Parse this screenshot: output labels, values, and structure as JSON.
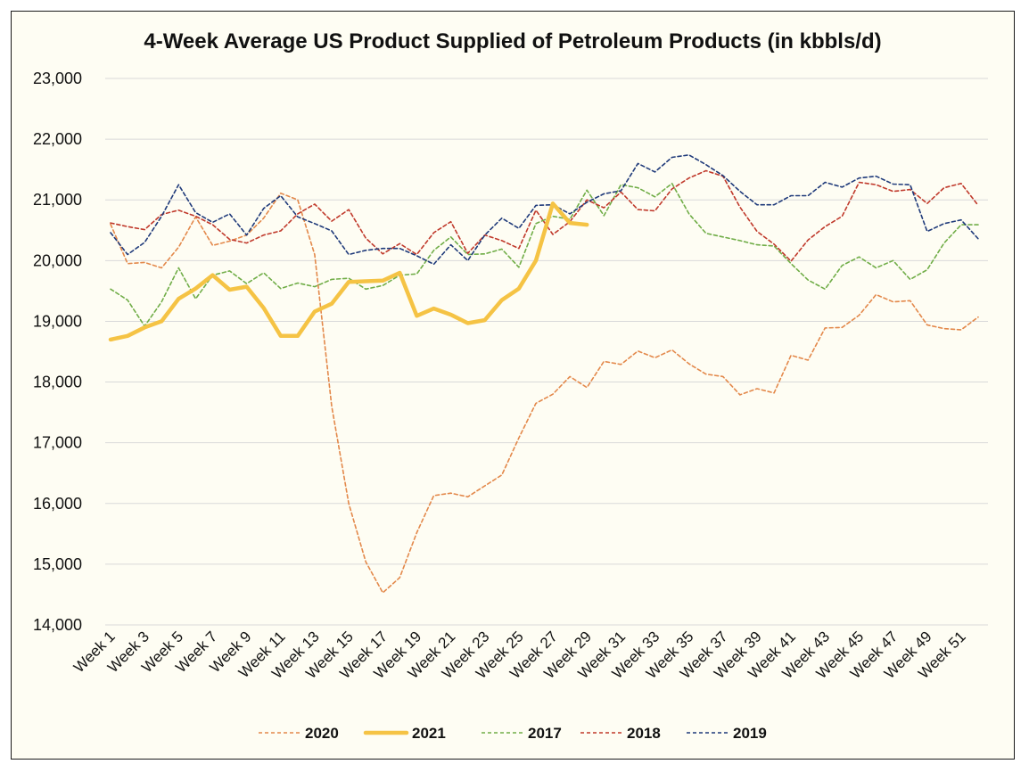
{
  "chart_data": {
    "type": "line",
    "title": "4-Week Average US Product Supplied of Petroleum Products (in kbbls/d)",
    "xlabel": "",
    "ylabel": "",
    "ylim": [
      14000,
      23000
    ],
    "yticks": [
      14000,
      15000,
      16000,
      17000,
      18000,
      19000,
      20000,
      21000,
      22000,
      23000
    ],
    "ytick_labels": [
      "14,000",
      "15,000",
      "16,000",
      "17,000",
      "18,000",
      "19,000",
      "20,000",
      "21,000",
      "22,000",
      "23,000"
    ],
    "x_tick_labels": [
      "Week 1",
      "Week 3",
      "Week 5",
      "Week 7",
      "Week 9",
      "Week 11",
      "Week 13",
      "Week 15",
      "Week 17",
      "Week 19",
      "Week 21",
      "Week 23",
      "Week 25",
      "Week 27",
      "Week 29",
      "Week 31",
      "Week 33",
      "Week 35",
      "Week 37",
      "Week 39",
      "Week 41",
      "Week 43",
      "Week 45",
      "Week 47",
      "Week 49",
      "Week 51"
    ],
    "grid": true,
    "legend_position": "bottom",
    "series": [
      {
        "name": "2020",
        "color": "#e3884a",
        "style": "dashed",
        "values": [
          20600,
          19950,
          19970,
          19880,
          20220,
          20720,
          20250,
          20320,
          20420,
          20700,
          21110,
          21000,
          20100,
          17600,
          16000,
          15040,
          14530,
          14780,
          15520,
          16130,
          16170,
          16110,
          16290,
          16470,
          17080,
          17650,
          17800,
          18090,
          17910,
          18340,
          18290,
          18510,
          18400,
          18530,
          18300,
          18130,
          18090,
          17790,
          17890,
          17820,
          18440,
          18360,
          18890,
          18900,
          19100,
          19440,
          19320,
          19340,
          18940,
          18880,
          18860,
          19070
        ]
      },
      {
        "name": "2021",
        "color": "#f5c344",
        "style": "solid",
        "values": [
          18700,
          18760,
          18900,
          19000,
          19370,
          19540,
          19760,
          19520,
          19570,
          19220,
          18760,
          18760,
          19160,
          19290,
          19650,
          19660,
          19670,
          19800,
          19090,
          19210,
          19110,
          18970,
          19020,
          19350,
          19540,
          20000,
          20940,
          20620,
          20590
        ]
      },
      {
        "name": "2017",
        "color": "#70ad47",
        "style": "dashed",
        "values": [
          19530,
          19350,
          18920,
          19320,
          19880,
          19370,
          19760,
          19830,
          19620,
          19800,
          19540,
          19630,
          19570,
          19690,
          19710,
          19530,
          19590,
          19760,
          19780,
          20170,
          20390,
          20100,
          20110,
          20190,
          19890,
          20610,
          20730,
          20680,
          21160,
          20740,
          21250,
          21200,
          21050,
          21270,
          20770,
          20450,
          20390,
          20330,
          20260,
          20240,
          19950,
          19680,
          19530,
          19920,
          20060,
          19880,
          20000,
          19690,
          19850,
          20290,
          20590,
          20590
        ]
      },
      {
        "name": "2018",
        "color": "#c0392b",
        "style": "dashed",
        "values": [
          20620,
          20560,
          20510,
          20760,
          20830,
          20730,
          20590,
          20350,
          20290,
          20420,
          20490,
          20770,
          20930,
          20650,
          20840,
          20370,
          20110,
          20280,
          20100,
          20460,
          20640,
          20120,
          20420,
          20330,
          20200,
          20830,
          20430,
          20640,
          21000,
          20870,
          21130,
          20840,
          20820,
          21180,
          21360,
          21480,
          21390,
          20880,
          20480,
          20270,
          19990,
          20340,
          20560,
          20730,
          21290,
          21250,
          21140,
          21170,
          20940,
          21200,
          21270,
          20910
        ]
      },
      {
        "name": "2019",
        "color": "#1f3a7a",
        "style": "dashed",
        "values": [
          20460,
          20100,
          20300,
          20730,
          21250,
          20790,
          20630,
          20770,
          20420,
          20860,
          21070,
          20720,
          20610,
          20490,
          20100,
          20170,
          20200,
          20200,
          20080,
          19940,
          20260,
          20000,
          20420,
          20700,
          20530,
          20910,
          20920,
          20770,
          20960,
          21100,
          21150,
          21600,
          21460,
          21700,
          21740,
          21580,
          21400,
          21140,
          20920,
          20920,
          21070,
          21070,
          21290,
          21210,
          21360,
          21390,
          21260,
          21250,
          20480,
          20610,
          20670,
          20360
        ]
      }
    ]
  }
}
